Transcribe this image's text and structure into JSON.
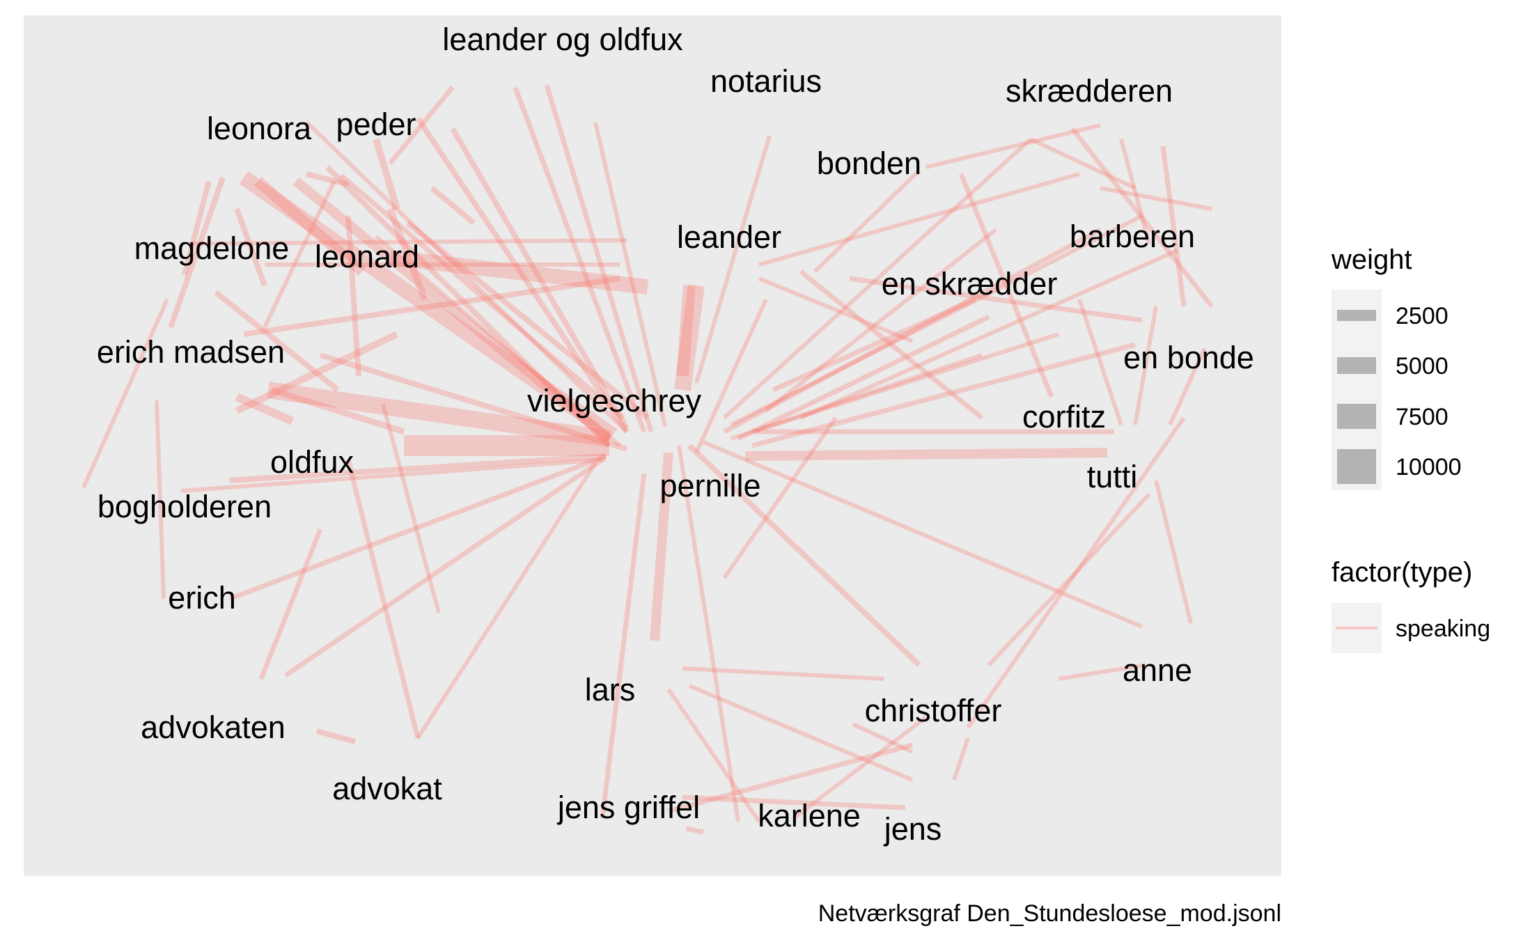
{
  "caption": "Netværksgraf Den_Stundesloese_mod.jsonl",
  "colors": {
    "panel_background": "#EBEBEB",
    "edge_speaking": "#F8766D",
    "legend_key_fill": "#B3B3B3",
    "legend_key_background": "#F2F2F2"
  },
  "nodes": [
    {
      "id": "leander_og_oldfux",
      "label": "leander og oldfux"
    },
    {
      "id": "notarius",
      "label": "notarius"
    },
    {
      "id": "skraedderen",
      "label": "skrædderen"
    },
    {
      "id": "leonora",
      "label": "leonora"
    },
    {
      "id": "peder",
      "label": "peder"
    },
    {
      "id": "bonden",
      "label": "bonden"
    },
    {
      "id": "leander",
      "label": "leander"
    },
    {
      "id": "barberen",
      "label": "barberen"
    },
    {
      "id": "magdelone",
      "label": "magdelone"
    },
    {
      "id": "leonard",
      "label": "leonard"
    },
    {
      "id": "en_skraedder",
      "label": "en skrædder"
    },
    {
      "id": "erich_madsen",
      "label": "erich madsen"
    },
    {
      "id": "en_bonde",
      "label": "en bonde"
    },
    {
      "id": "vielgeschrey",
      "label": "vielgeschrey"
    },
    {
      "id": "corfitz",
      "label": "corfitz"
    },
    {
      "id": "oldfux",
      "label": "oldfux"
    },
    {
      "id": "tutti",
      "label": "tutti"
    },
    {
      "id": "pernille",
      "label": "pernille"
    },
    {
      "id": "bogholderen",
      "label": "bogholderen"
    },
    {
      "id": "erich",
      "label": "erich"
    },
    {
      "id": "anne",
      "label": "anne"
    },
    {
      "id": "lars",
      "label": "lars"
    },
    {
      "id": "christoffer",
      "label": "christoffer"
    },
    {
      "id": "advokaten",
      "label": "advokaten"
    },
    {
      "id": "advokat",
      "label": "advokat"
    },
    {
      "id": "jens_griffel",
      "label": "jens griffel"
    },
    {
      "id": "karlene",
      "label": "karlene"
    },
    {
      "id": "jens",
      "label": "jens"
    }
  ],
  "legend": {
    "weight": {
      "title": "weight",
      "entries": [
        {
          "label": "2500",
          "value": 2500
        },
        {
          "label": "5000",
          "value": 5000
        },
        {
          "label": "7500",
          "value": 7500
        },
        {
          "label": "10000",
          "value": 10000
        }
      ]
    },
    "type": {
      "title": "factor(type)",
      "entries": [
        {
          "label": "speaking",
          "color": "#F8766D"
        }
      ]
    }
  }
}
